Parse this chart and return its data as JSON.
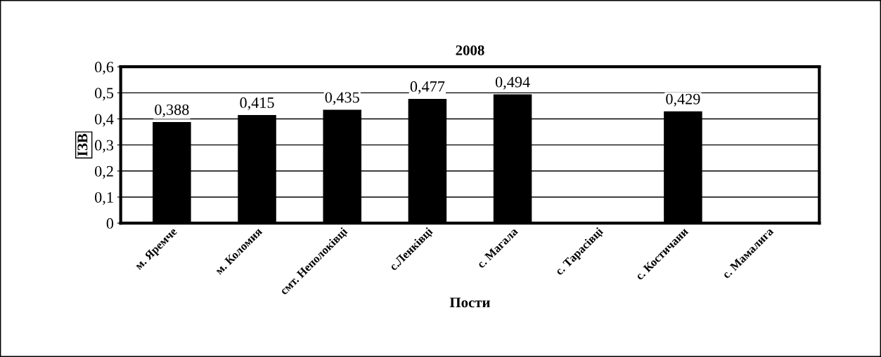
{
  "chart_data": {
    "type": "bar",
    "title": "2008",
    "xlabel": "Пости",
    "ylabel": "ІЗВ",
    "categories": [
      "м. Яремче",
      "м. Коломия",
      "смт. Неполоківці",
      "с.Ленківці",
      "с. Магала",
      "с. Тарасівці",
      "с. Костичани",
      "с. Мамалига"
    ],
    "values": [
      0.388,
      0.415,
      0.435,
      0.477,
      0.494,
      null,
      0.429,
      null
    ],
    "value_labels": [
      "0,388",
      "0,415",
      "0,435",
      "0,477",
      "0,494",
      null,
      "0,429",
      null
    ],
    "color": "#000000",
    "ylim": [
      0,
      0.6
    ],
    "yticks": [
      0,
      {
        "value": 0.1,
        "label": "0,1"
      },
      {
        "value": 0.2,
        "label": "0,2"
      },
      {
        "value": 0.3,
        "label": "0,3"
      },
      {
        "value": 0.4,
        "label": "0,4"
      },
      {
        "value": 0.5,
        "label": "0,5"
      },
      {
        "value": 0.6,
        "label": "0,6"
      }
    ],
    "grid": "y",
    "legend": false
  }
}
